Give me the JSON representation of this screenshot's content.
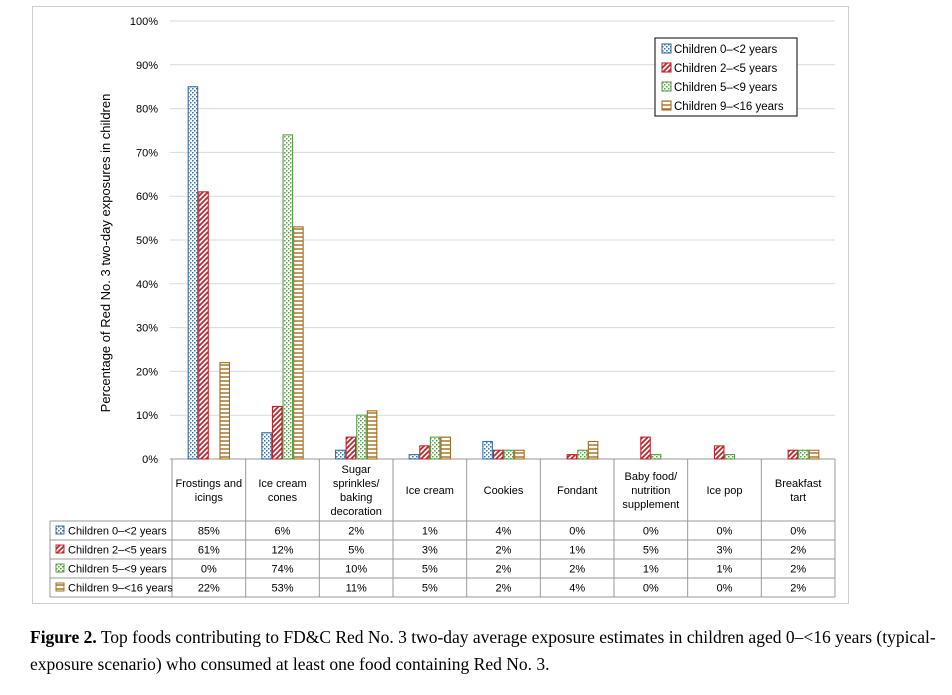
{
  "chart_data": {
    "type": "bar",
    "ylabel": "Percentage of Red No. 3 two-day exposures in children",
    "ylim": [
      0,
      100
    ],
    "yticks": [
      "0%",
      "10%",
      "20%",
      "30%",
      "40%",
      "50%",
      "60%",
      "70%",
      "80%",
      "90%",
      "100%"
    ],
    "grid": true,
    "legend_position": "top-right",
    "categories": [
      [
        "Frostings and",
        "icings"
      ],
      [
        "Ice cream",
        "cones"
      ],
      [
        "Sugar",
        "sprinkles/",
        "baking",
        "decoration"
      ],
      [
        "Ice cream"
      ],
      [
        "Cookies"
      ],
      [
        "Fondant"
      ],
      [
        "Baby food/",
        "nutrition",
        "supplement"
      ],
      [
        "Ice pop"
      ],
      [
        "Breakfast",
        "tart"
      ]
    ],
    "series": [
      {
        "name": "Children 0–<2 years",
        "color": "#3a6fa8",
        "pattern": "dots",
        "values": [
          85,
          6,
          2,
          1,
          4,
          0,
          0,
          0,
          0
        ],
        "labels": [
          "85%",
          "6%",
          "2%",
          "1%",
          "4%",
          "0%",
          "0%",
          "0%",
          "0%"
        ]
      },
      {
        "name": "Children 2–<5 years",
        "color": "#c0262d",
        "pattern": "diagonal",
        "values": [
          61,
          12,
          5,
          3,
          2,
          1,
          5,
          3,
          2
        ],
        "labels": [
          "61%",
          "12%",
          "5%",
          "3%",
          "2%",
          "1%",
          "5%",
          "3%",
          "2%"
        ]
      },
      {
        "name": "Children 5–<9 years",
        "color": "#5a9e4b",
        "pattern": "dots",
        "values": [
          0,
          74,
          10,
          5,
          2,
          2,
          1,
          1,
          2
        ],
        "labels": [
          "0%",
          "74%",
          "10%",
          "5%",
          "2%",
          "2%",
          "1%",
          "1%",
          "2%"
        ]
      },
      {
        "name": "Children 9–<16 years",
        "color": "#a66c1e",
        "pattern": "horizontal",
        "values": [
          22,
          53,
          11,
          5,
          2,
          4,
          0,
          0,
          2
        ],
        "labels": [
          "22%",
          "53%",
          "11%",
          "5%",
          "2%",
          "4%",
          "0%",
          "0%",
          "2%"
        ]
      }
    ]
  },
  "caption": {
    "label": "Figure 2.",
    "text": " Top foods contributing to FD&C Red No. 3 two-day average exposure estimates in children aged 0–<16 years (typical-exposure scenario) who consumed at least one food containing Red No. 3."
  }
}
